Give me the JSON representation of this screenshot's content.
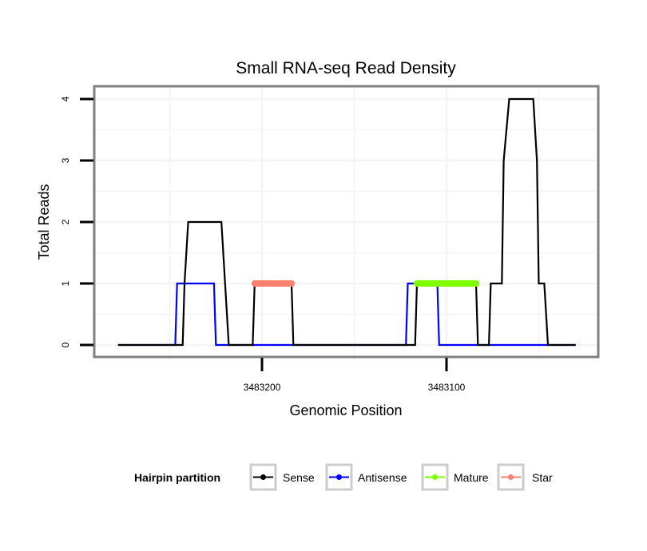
{
  "chart_data": {
    "type": "line",
    "title": "Small RNA-seq Read Density",
    "xlabel": "Genomic Position",
    "ylabel": "Total Reads",
    "x_reversed": true,
    "xlim": [
      3483283,
      3483010
    ],
    "ylim": [
      -0.2,
      4.2
    ],
    "x_ticks": [
      {
        "value": 3483200,
        "label": "3483200"
      },
      {
        "value": 3483100,
        "label": "3483100"
      }
    ],
    "y_ticks": [
      {
        "value": 0,
        "label": "0"
      },
      {
        "value": 1,
        "label": "1"
      },
      {
        "value": 2,
        "label": "2"
      },
      {
        "value": 3,
        "label": "3"
      },
      {
        "value": 4,
        "label": "4"
      }
    ],
    "grid": true,
    "legend": {
      "title": "Hairpin partition",
      "position": "bottom",
      "entries": [
        {
          "name": "Sense",
          "color": "#000000"
        },
        {
          "name": "Antisense",
          "color": "#0000ff"
        },
        {
          "name": "Mature",
          "color": "#7fff00"
        },
        {
          "name": "Star",
          "color": "#fa8072"
        }
      ]
    },
    "series": [
      {
        "name": "Antisense",
        "color": "#0000ff",
        "style": "line",
        "points": [
          [
            3483278,
            0
          ],
          [
            3483247,
            0
          ],
          [
            3483246,
            1
          ],
          [
            3483226,
            1
          ],
          [
            3483225,
            0
          ],
          [
            3483122,
            0
          ],
          [
            3483121,
            1
          ],
          [
            3483105,
            1
          ],
          [
            3483104,
            0
          ],
          [
            3483030,
            0
          ]
        ]
      },
      {
        "name": "Sense",
        "color": "#000000",
        "style": "line",
        "points": [
          [
            3483278,
            0
          ],
          [
            3483243,
            0
          ],
          [
            3483242,
            1
          ],
          [
            3483240,
            2
          ],
          [
            3483222,
            2
          ],
          [
            3483220,
            1
          ],
          [
            3483218,
            0
          ],
          [
            3483205,
            0
          ],
          [
            3483204,
            1
          ],
          [
            3483184,
            1
          ],
          [
            3483183,
            0
          ],
          [
            3483117,
            0
          ],
          [
            3483116,
            1
          ],
          [
            3483084,
            1
          ],
          [
            3483083,
            0
          ],
          [
            3483077,
            0
          ],
          [
            3483076,
            1
          ],
          [
            3483070,
            1
          ],
          [
            3483069,
            3
          ],
          [
            3483066,
            4
          ],
          [
            3483053,
            4
          ],
          [
            3483051,
            3
          ],
          [
            3483050,
            1
          ],
          [
            3483047,
            1
          ],
          [
            3483045,
            0
          ],
          [
            3483030,
            0
          ]
        ]
      },
      {
        "name": "Star",
        "color": "#fa8072",
        "style": "thick-segment",
        "points": [
          [
            3483204,
            1
          ],
          [
            3483184,
            1
          ]
        ]
      },
      {
        "name": "Mature",
        "color": "#7fff00",
        "style": "thick-segment",
        "points": [
          [
            3483116,
            1
          ],
          [
            3483084,
            1
          ]
        ]
      }
    ]
  }
}
